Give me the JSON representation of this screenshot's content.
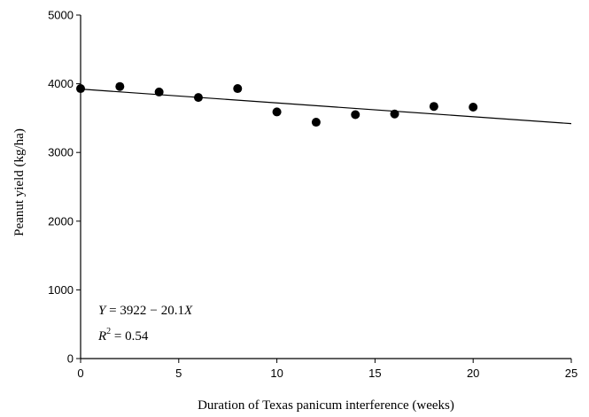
{
  "chart_data": {
    "type": "scatter",
    "title": "",
    "xlabel": "Duration of Texas panicum interference (weeks)",
    "ylabel": "Peanut yield (kg/ha)",
    "xlim": [
      0,
      25
    ],
    "ylim": [
      0,
      5000
    ],
    "x_ticks": [
      0,
      5,
      10,
      15,
      20,
      25
    ],
    "y_ticks": [
      0,
      1000,
      2000,
      3000,
      4000,
      5000
    ],
    "grid": false,
    "series": [
      {
        "points": [
          {
            "x": 0,
            "y": 3930
          },
          {
            "x": 2,
            "y": 3960
          },
          {
            "x": 4,
            "y": 3880
          },
          {
            "x": 6,
            "y": 3800
          },
          {
            "x": 8,
            "y": 3930
          },
          {
            "x": 10,
            "y": 3590
          },
          {
            "x": 12,
            "y": 3440
          },
          {
            "x": 14,
            "y": 3550
          },
          {
            "x": 16,
            "y": 3560
          },
          {
            "x": 18,
            "y": 3670
          },
          {
            "x": 20,
            "y": 3660
          }
        ]
      }
    ],
    "trendline": {
      "intercept": 3922,
      "slope": -20.1,
      "x_range": [
        0,
        25
      ]
    },
    "annotations": {
      "equation": {
        "lhs": "Y",
        "rhs_num": "3922",
        "minus": "−",
        "coef": "20.1",
        "var": "X"
      },
      "r_squared": {
        "symbol": "R",
        "exponent": "2",
        "value": "0.54"
      }
    }
  }
}
